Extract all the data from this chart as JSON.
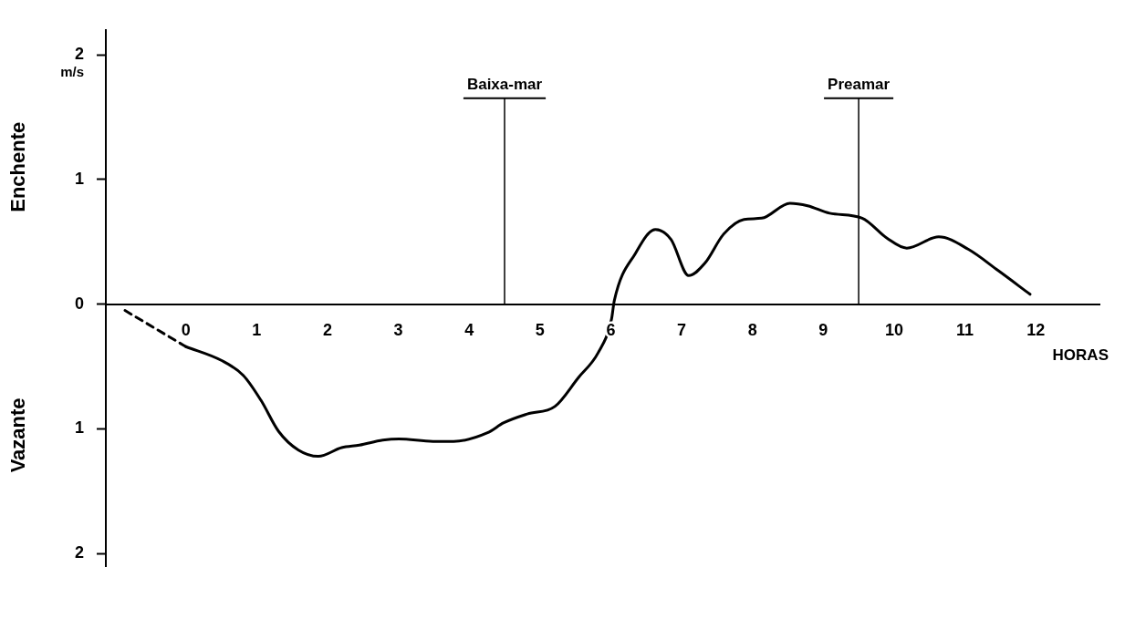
{
  "chart_data": {
    "type": "line",
    "xlabel": "HORAS",
    "ylabel": "Enchente",
    "annotations": [
      "m/s",
      "Vazante"
    ],
    "series": [
      {
        "color": "#000000",
        "line_style": "solid",
        "x": [
          0,
          0.5,
          0.81,
          1.06,
          1.31,
          1.59,
          1.87,
          2.2,
          2.45,
          2.78,
          3.01,
          3.49,
          3.78,
          4.26,
          4.49,
          4.82,
          5.21,
          5.54,
          5.82,
          6.01,
          6.05,
          6.35,
          6.63,
          6.85,
          7.1,
          7.33,
          7.59,
          7.88,
          8.13,
          8.53,
          8.78,
          9.09,
          9.55,
          9.9,
          10.18,
          10.63,
          11.05,
          11.47,
          11.92
        ],
        "values": [
          -0.34,
          -0.45,
          -0.57,
          -0.77,
          -1.02,
          -1.17,
          -1.22,
          -1.15,
          -1.13,
          -1.09,
          -1.08,
          -1.1,
          -1.1,
          -1.03,
          -0.95,
          -0.88,
          -0.82,
          -0.59,
          -0.39,
          -0.12,
          0.03,
          0.41,
          0.6,
          0.52,
          0.23,
          0.33,
          0.56,
          0.68,
          0.69,
          0.81,
          0.79,
          0.73,
          0.69,
          0.53,
          0.45,
          0.54,
          0.44,
          0.27,
          0.08
        ]
      },
      {
        "color": "#000000",
        "line_style": "dashed",
        "x": [
          -0.86,
          0
        ],
        "values": [
          -0.05,
          -0.34
        ]
      }
    ],
    "ref_lines": [
      {
        "axis": "x",
        "value": 4.5,
        "label": "Baixa-mar"
      },
      {
        "axis": "x",
        "value": 9.5,
        "label": "Preamar"
      }
    ],
    "xlim": [
      -1.13,
      12.9
    ],
    "xticks": [
      0,
      1,
      2,
      3,
      4,
      5,
      6,
      7,
      8,
      9,
      10,
      11,
      12
    ],
    "ylim": [
      -2.1,
      2.2
    ],
    "yticks": [
      {
        "value": -2,
        "label": "2"
      },
      {
        "value": -1,
        "label": "1"
      },
      0,
      1,
      2
    ],
    "grid": false,
    "legend": false,
    "marker": "none"
  }
}
